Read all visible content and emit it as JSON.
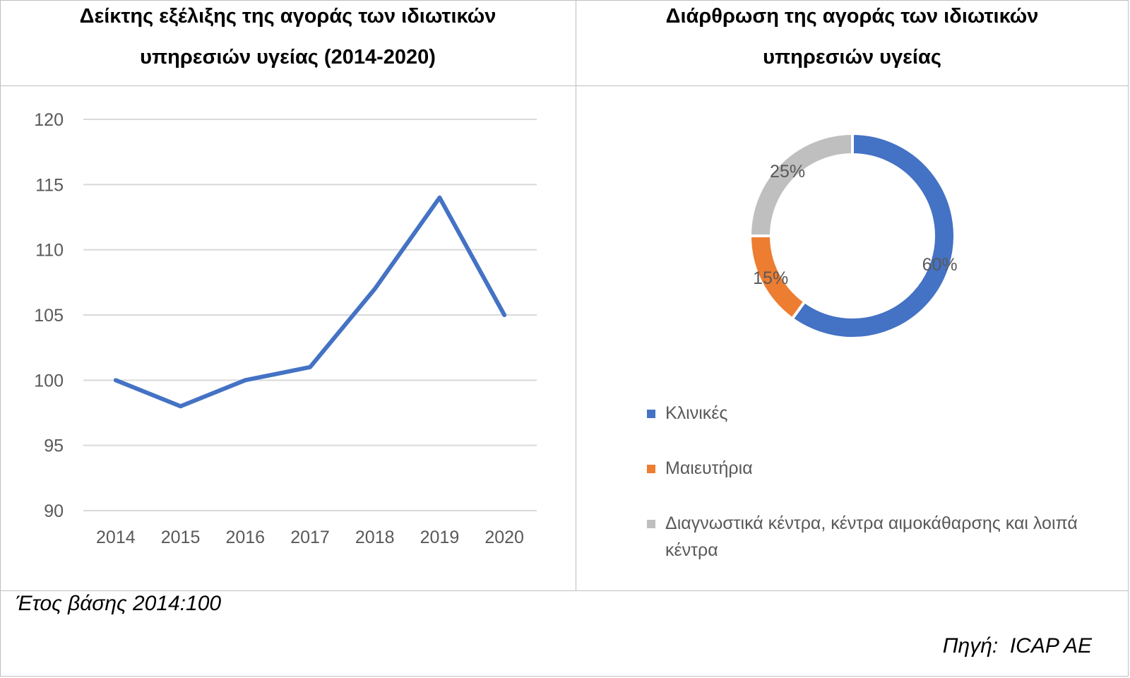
{
  "left_panel": {
    "title_line1": "Δείκτης εξέλιξης της αγοράς των ιδιωτικών",
    "title_line2": "υπηρεσιών υγείας (2014-2020)"
  },
  "right_panel": {
    "title_line1": "Διάρθρωση της αγοράς των ιδιωτικών",
    "title_line2": "υπηρεσιών υγείας"
  },
  "footer": {
    "base_year_note": "Έτος βάσης 2014:100",
    "source_note": "Πηγή:  ICAP AE"
  },
  "chart_data": [
    {
      "type": "line",
      "x": [
        "2014",
        "2015",
        "2016",
        "2017",
        "2018",
        "2019",
        "2020"
      ],
      "series": [
        {
          "values": [
            100,
            98,
            100,
            101,
            107,
            114,
            105
          ],
          "color": "#4472c4"
        }
      ],
      "ylim": [
        90,
        120
      ],
      "yticks": [
        90,
        95,
        100,
        105,
        110,
        115,
        120
      ],
      "grid": true,
      "legend": "none"
    },
    {
      "type": "pie",
      "style": "donut",
      "slices": [
        {
          "label": "Κλινικές",
          "value": 60,
          "value_label": "60%",
          "color": "#4472c4"
        },
        {
          "label": "Μαιευτήρια",
          "value": 15,
          "value_label": "15%",
          "color": "#ed7d31"
        },
        {
          "label": "Διαγνωστικά κέντρα, κέντρα αιμοκάθαρσης και λοιπά κέντρα",
          "value": 25,
          "value_label": "25%",
          "color": "#bfbfbf"
        }
      ],
      "legend": "bottom"
    }
  ]
}
